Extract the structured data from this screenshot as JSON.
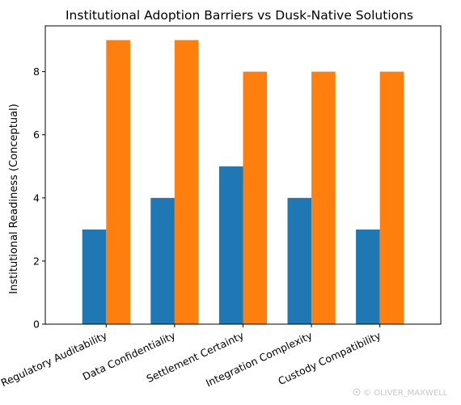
{
  "chart_data": {
    "type": "bar",
    "title": "Institutional Adoption Barriers vs Dusk-Native Solutions",
    "xlabel": "",
    "ylabel": "Institutional Readiness (Conceptual)",
    "categories": [
      "Regulatory Auditability",
      "Data Confidentiality",
      "Settlement Certainty",
      "Integration Complexity",
      "Custody Compatibility"
    ],
    "series": [
      {
        "values": [
          3,
          4,
          5,
          4,
          3
        ],
        "color": "#1f77b4"
      },
      {
        "values": [
          9,
          9,
          8,
          8,
          8
        ],
        "color": "#ff7f0e"
      }
    ],
    "ylim": [
      0,
      9.45
    ],
    "yticks": [
      0,
      2,
      4,
      6,
      8
    ],
    "grid": false,
    "legend": "none"
  },
  "watermark": {
    "text": "© OLIVER_MAXWELL",
    "icon": "tag-icon"
  }
}
